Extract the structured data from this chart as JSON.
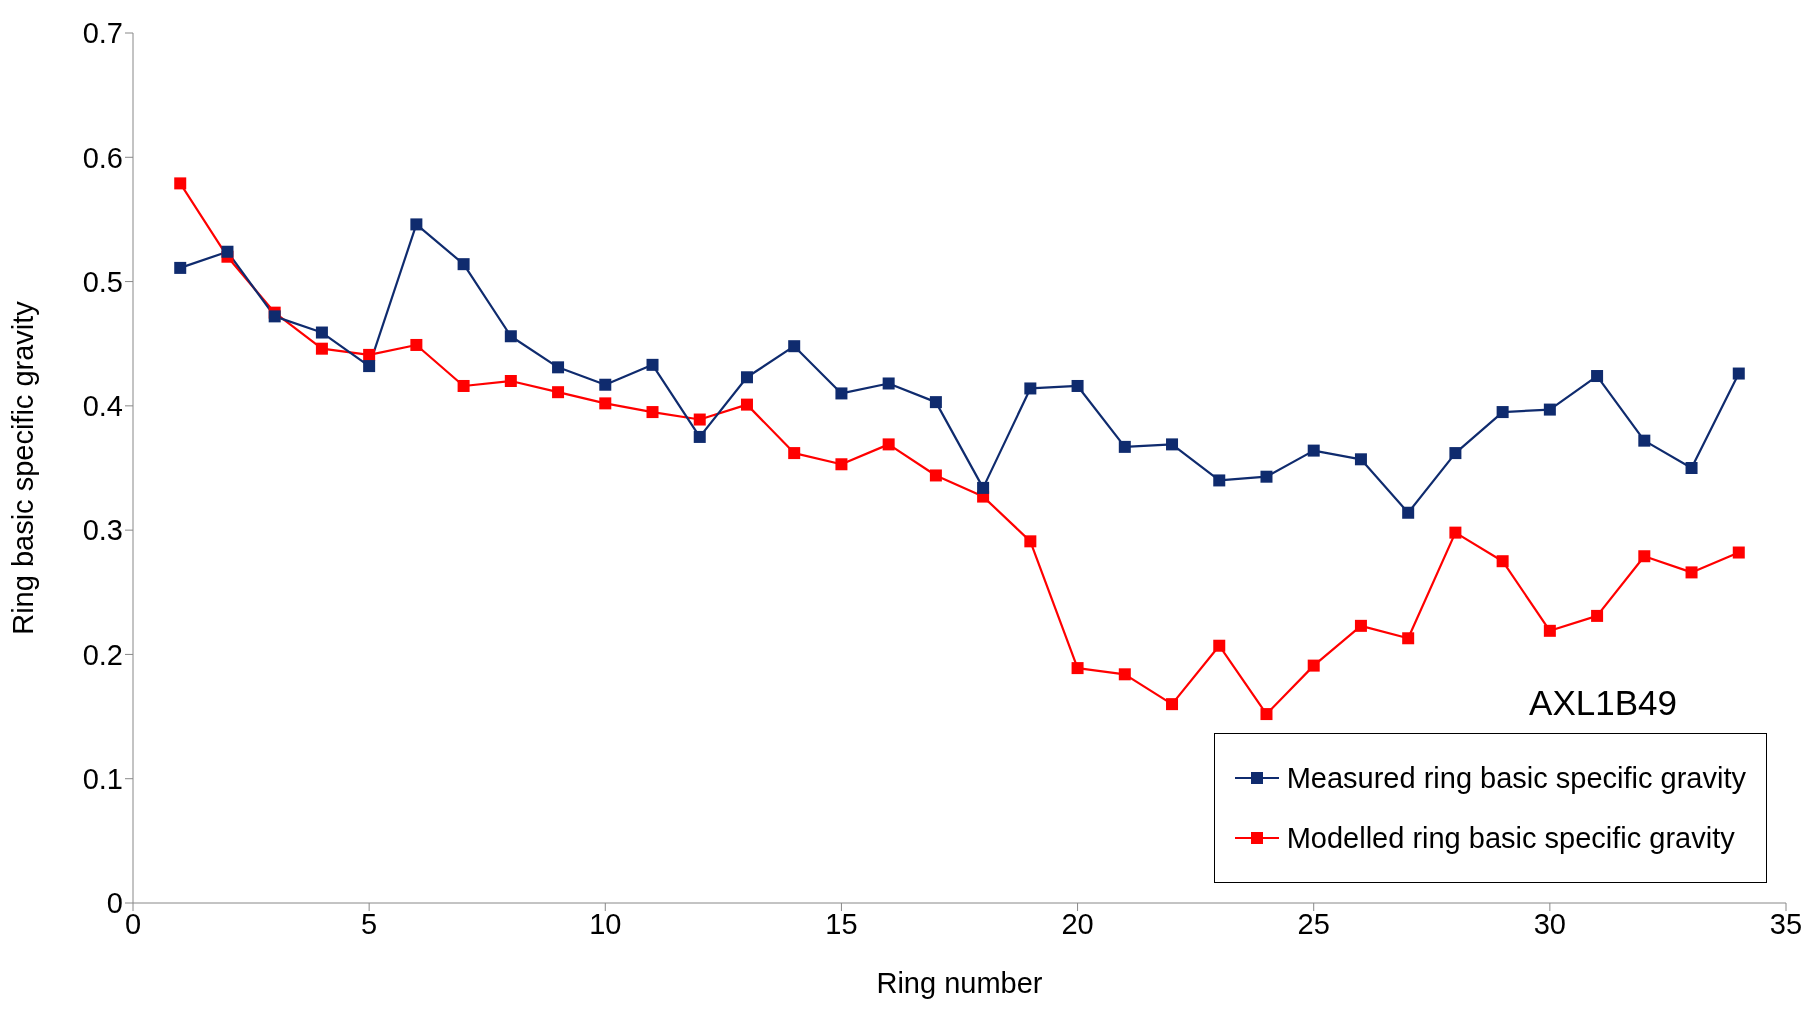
{
  "chart_data": {
    "type": "line",
    "xlabel": "Ring number",
    "ylabel": "Ring basic specific gravity",
    "x": [
      1,
      2,
      3,
      4,
      5,
      6,
      7,
      8,
      9,
      10,
      11,
      12,
      13,
      14,
      15,
      16,
      17,
      18,
      19,
      20,
      21,
      22,
      23,
      24,
      25,
      26,
      27,
      28,
      29,
      30,
      31,
      32,
      33,
      34
    ],
    "series": [
      {
        "name": "Measured ring basic specific gravity",
        "color": "#0f2b6e",
        "values": [
          0.511,
          0.524,
          0.472,
          0.459,
          0.432,
          0.546,
          0.514,
          0.456,
          0.431,
          0.417,
          0.433,
          0.375,
          0.423,
          0.448,
          0.41,
          0.418,
          0.403,
          0.334,
          0.414,
          0.416,
          0.367,
          0.369,
          0.34,
          0.343,
          0.364,
          0.357,
          0.314,
          0.362,
          0.395,
          0.397,
          0.424,
          0.372,
          0.35,
          0.426
        ]
      },
      {
        "name": "Modelled ring basic specific gravity",
        "color": "#ff0000",
        "values": [
          0.579,
          0.52,
          0.475,
          0.446,
          0.441,
          0.449,
          0.416,
          0.42,
          0.411,
          0.402,
          0.395,
          0.389,
          0.401,
          0.362,
          0.353,
          0.369,
          0.344,
          0.327,
          0.291,
          0.189,
          0.184,
          0.16,
          0.207,
          0.152,
          0.191,
          0.223,
          0.213,
          0.298,
          0.275,
          0.219,
          0.231,
          0.279,
          0.266,
          0.282
        ]
      }
    ],
    "xlim": [
      0,
      35
    ],
    "xticks": [
      0,
      5,
      10,
      15,
      20,
      25,
      30,
      35
    ],
    "ylim": [
      0,
      0.7
    ],
    "yticks": [
      0,
      0.1,
      0.2,
      0.3,
      0.4,
      0.5,
      0.6,
      0.7
    ],
    "grid": false,
    "legend": "bottom right",
    "marker": "square",
    "line_style": "solid",
    "annotations": [
      "AXL1B49"
    ]
  }
}
